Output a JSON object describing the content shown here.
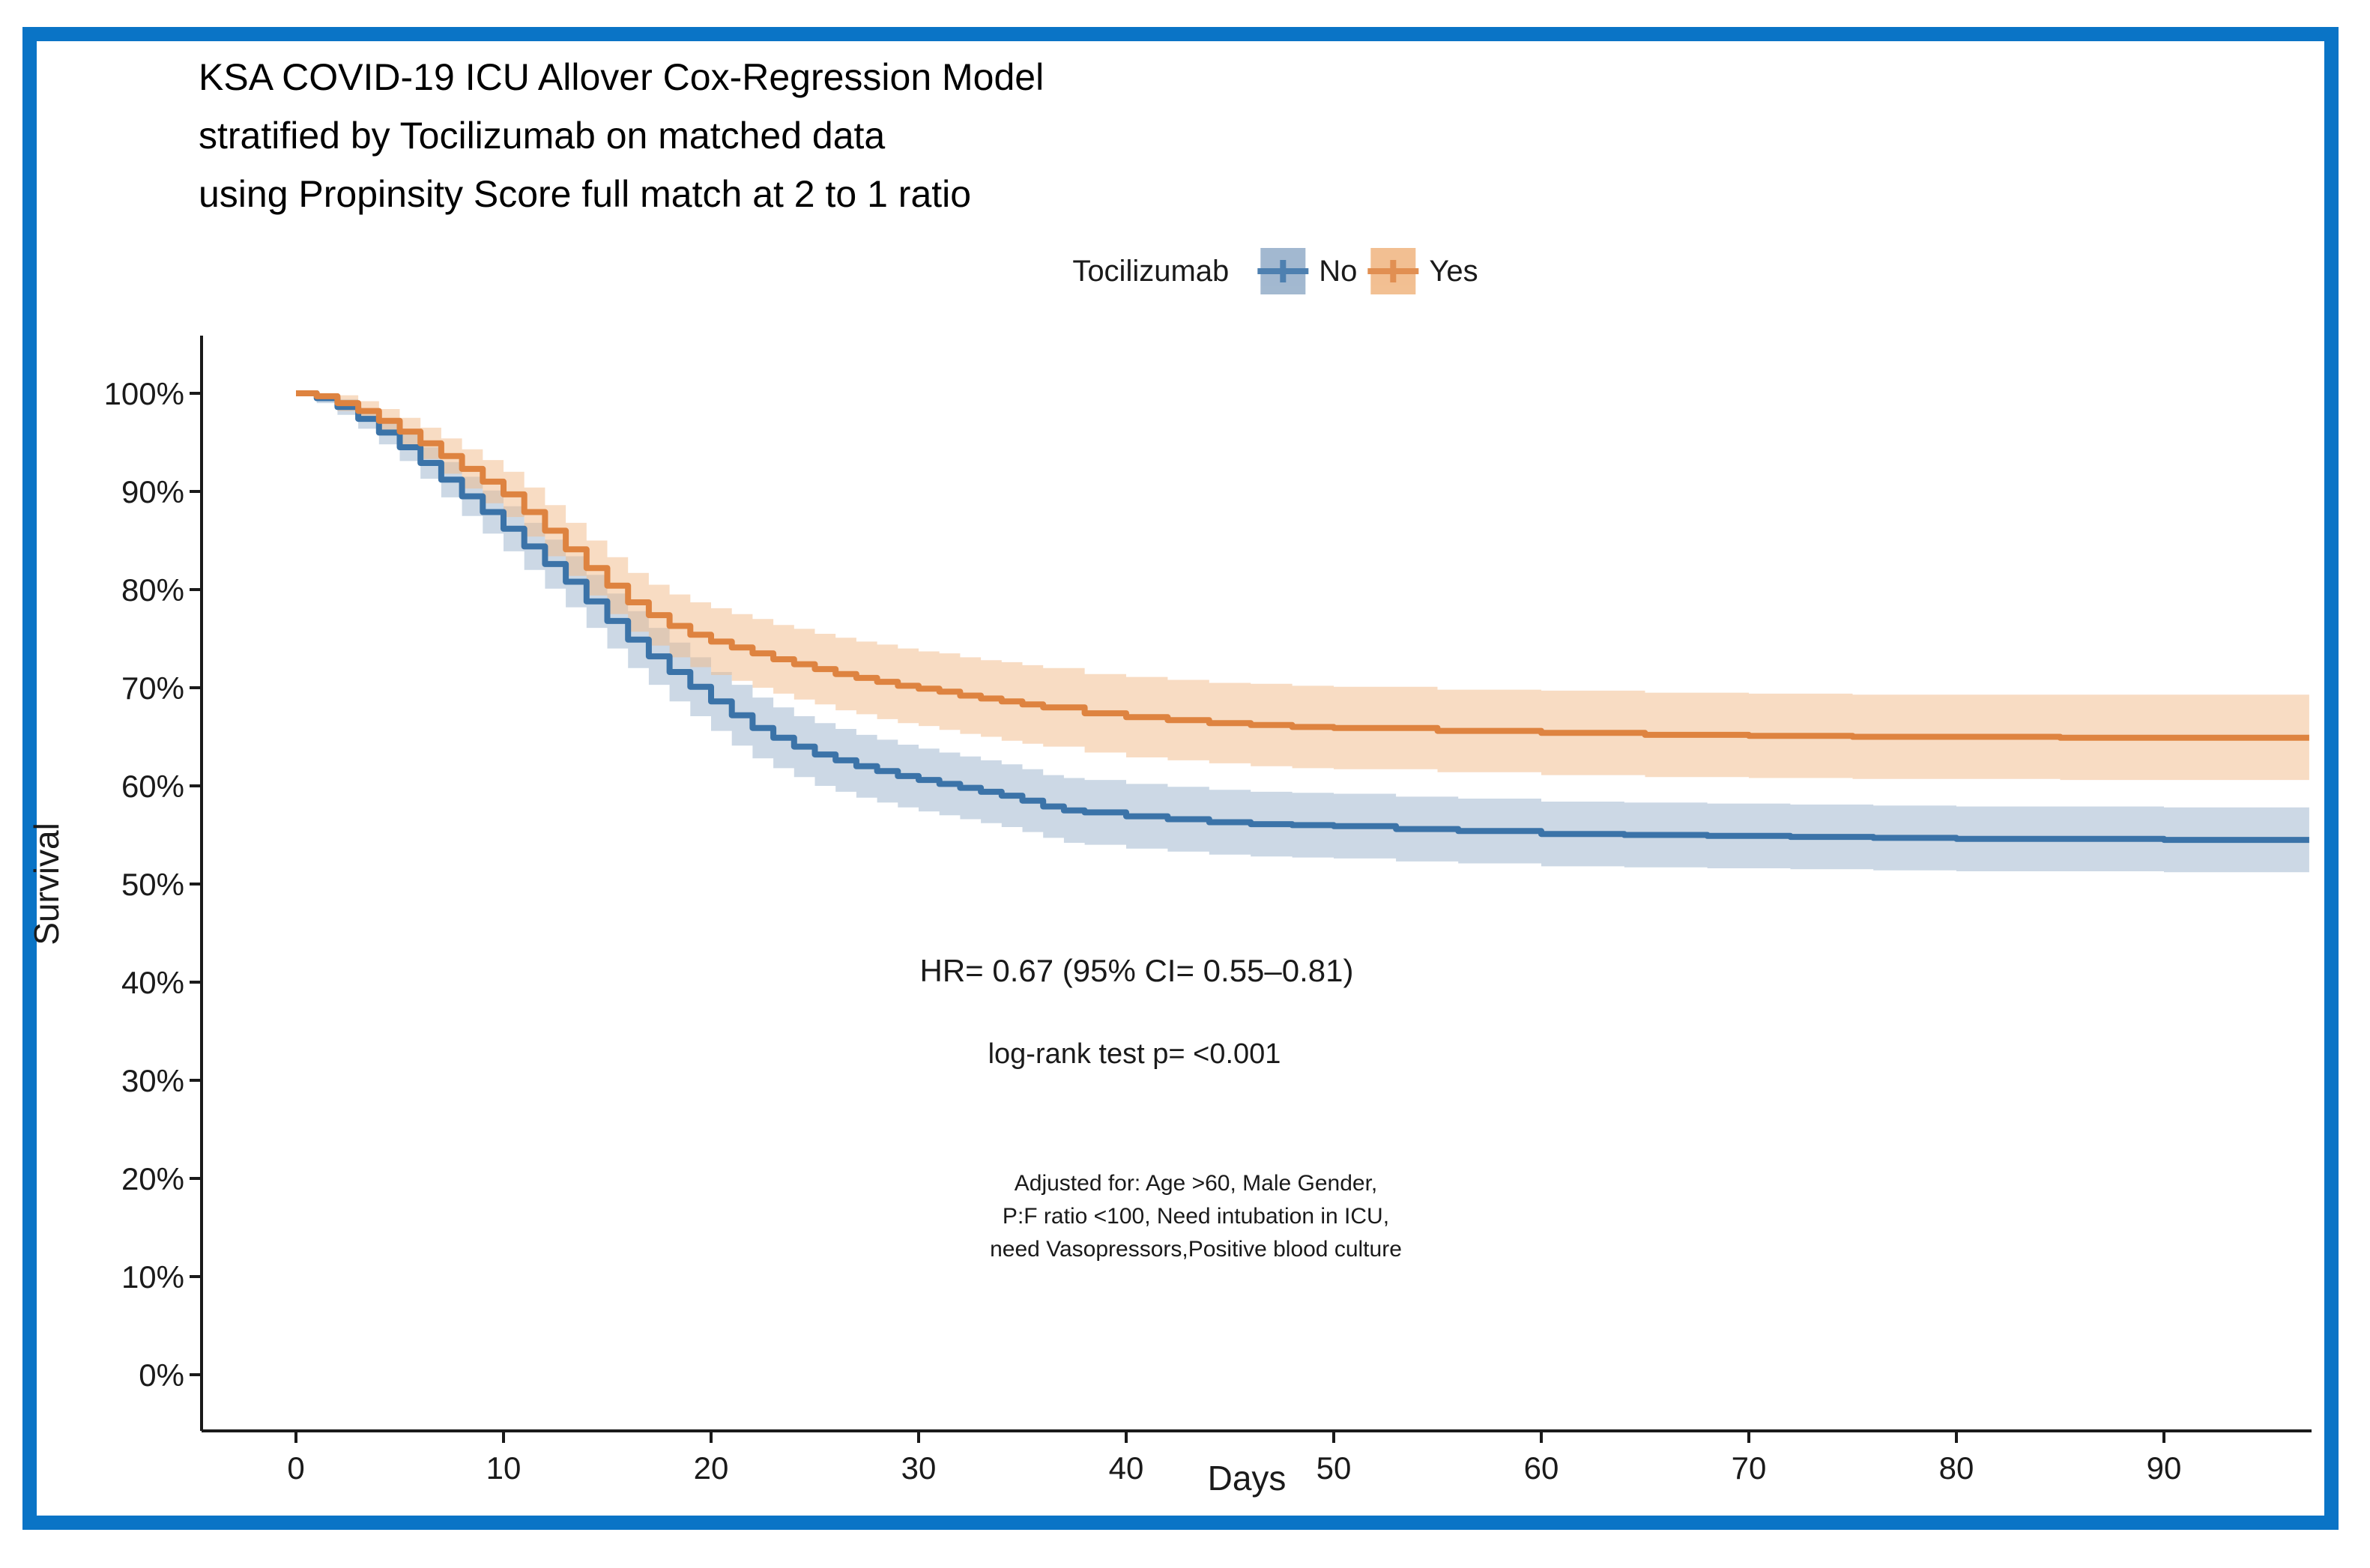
{
  "colors": {
    "frame": "#0a74c6",
    "axis": "#1a1a1a",
    "text": "#1a1a1a"
  },
  "chart_data": {
    "type": "line",
    "subtype": "kaplan-meier-step",
    "title_lines": [
      "KSA COVID-19 ICU Allover Cox-Regression Model",
      "stratified by Tocilizumab on matched data",
      "using Propinsity Score full match at 2 to 1 ratio"
    ],
    "xlabel": "Days",
    "ylabel": "Survival",
    "x_range_days": [
      0,
      97
    ],
    "y_range_pct": [
      0,
      100
    ],
    "grid": false,
    "legend": {
      "title": "Tocilizumab",
      "position": "top-center",
      "items": [
        {
          "label": "No",
          "line_color": "#3b73a8",
          "band_color": "#99b1cb"
        },
        {
          "label": "Yes",
          "line_color": "#de8340",
          "band_color": "#f1b987"
        }
      ]
    },
    "x_ticks": [
      {
        "v": 0,
        "label": "0"
      },
      {
        "v": 10,
        "label": "10"
      },
      {
        "v": 20,
        "label": "20"
      },
      {
        "v": 30,
        "label": "30"
      },
      {
        "v": 40,
        "label": "40"
      },
      {
        "v": 50,
        "label": "50"
      },
      {
        "v": 60,
        "label": "60"
      },
      {
        "v": 70,
        "label": "70"
      },
      {
        "v": 80,
        "label": "80"
      },
      {
        "v": 90,
        "label": "90"
      }
    ],
    "y_ticks": [
      {
        "v": 0,
        "label": "0%"
      },
      {
        "v": 10,
        "label": "10%"
      },
      {
        "v": 20,
        "label": "20%"
      },
      {
        "v": 30,
        "label": "30%"
      },
      {
        "v": 40,
        "label": "40%"
      },
      {
        "v": 50,
        "label": "50%"
      },
      {
        "v": 60,
        "label": "60%"
      },
      {
        "v": 70,
        "label": "70%"
      },
      {
        "v": 80,
        "label": "80%"
      },
      {
        "v": 90,
        "label": "90%"
      },
      {
        "v": 100,
        "label": "100%"
      }
    ],
    "annotations": {
      "hr": "HR= 0.67 (95% CI= 0.55–0.81)",
      "logrank": "log-rank test p= <0.001",
      "adjusted_lines": [
        "Adjusted for: Age >60, Male Gender,",
        "P:F ratio <100, Need intubation in ICU,",
        "need Vasopressors,Positive blood culture"
      ]
    },
    "series": [
      {
        "name": "No",
        "color": "#3b73a8",
        "band_color": "#99b1cb",
        "band_opacity": 0.5,
        "points": [
          [
            0,
            100,
            99.7,
            100
          ],
          [
            1,
            99.5,
            99.0,
            100
          ],
          [
            2,
            98.6,
            97.8,
            99.4
          ],
          [
            3,
            97.4,
            96.4,
            98.4
          ],
          [
            4,
            96.0,
            94.8,
            97.2
          ],
          [
            5,
            94.5,
            93.1,
            95.9
          ],
          [
            6,
            92.9,
            91.3,
            94.5
          ],
          [
            7,
            91.2,
            89.4,
            93.0
          ],
          [
            8,
            89.5,
            87.5,
            91.5
          ],
          [
            9,
            87.9,
            85.7,
            90.1
          ],
          [
            10,
            86.2,
            83.9,
            88.5
          ],
          [
            11,
            84.4,
            82.0,
            86.8
          ],
          [
            12,
            82.6,
            80.1,
            85.1
          ],
          [
            13,
            80.8,
            78.2,
            83.4
          ],
          [
            14,
            78.8,
            76.1,
            81.5
          ],
          [
            15,
            76.8,
            74.0,
            79.6
          ],
          [
            16,
            74.9,
            72.0,
            77.8
          ],
          [
            17,
            73.2,
            70.3,
            76.1
          ],
          [
            18,
            71.6,
            68.6,
            74.6
          ],
          [
            19,
            70.1,
            67.1,
            73.1
          ],
          [
            20,
            68.6,
            65.6,
            71.6
          ],
          [
            21,
            67.2,
            64.1,
            70.3
          ],
          [
            22,
            65.9,
            62.8,
            69.0
          ],
          [
            23,
            64.9,
            61.8,
            68.0
          ],
          [
            24,
            64.0,
            60.9,
            67.1
          ],
          [
            25,
            63.2,
            60.0,
            66.4
          ],
          [
            26,
            62.6,
            59.4,
            65.8
          ],
          [
            27,
            62.0,
            58.8,
            65.2
          ],
          [
            28,
            61.5,
            58.3,
            64.7
          ],
          [
            29,
            61.0,
            57.8,
            64.2
          ],
          [
            30,
            60.6,
            57.4,
            63.8
          ],
          [
            31,
            60.2,
            57.0,
            63.4
          ],
          [
            32,
            59.8,
            56.6,
            63.0
          ],
          [
            33,
            59.4,
            56.2,
            62.6
          ],
          [
            34,
            59.0,
            55.8,
            62.2
          ],
          [
            35,
            58.5,
            55.3,
            61.7
          ],
          [
            36,
            57.9,
            54.7,
            61.1
          ],
          [
            37,
            57.5,
            54.2,
            60.8
          ],
          [
            38,
            57.3,
            54.0,
            60.6
          ],
          [
            40,
            56.9,
            53.6,
            60.2
          ],
          [
            42,
            56.6,
            53.3,
            59.9
          ],
          [
            44,
            56.3,
            53.0,
            59.6
          ],
          [
            46,
            56.1,
            52.8,
            59.4
          ],
          [
            48,
            56.0,
            52.7,
            59.3
          ],
          [
            50,
            55.9,
            52.6,
            59.2
          ],
          [
            53,
            55.6,
            52.3,
            58.9
          ],
          [
            56,
            55.4,
            52.1,
            58.7
          ],
          [
            60,
            55.1,
            51.8,
            58.4
          ],
          [
            64,
            55.0,
            51.7,
            58.3
          ],
          [
            68,
            54.9,
            51.6,
            58.2
          ],
          [
            72,
            54.8,
            51.5,
            58.1
          ],
          [
            76,
            54.7,
            51.4,
            58.0
          ],
          [
            80,
            54.6,
            51.3,
            57.9
          ],
          [
            85,
            54.6,
            51.3,
            57.9
          ],
          [
            90,
            54.5,
            51.2,
            57.8
          ],
          [
            97,
            54.5,
            51.2,
            57.8
          ]
        ]
      },
      {
        "name": "Yes",
        "color": "#de8340",
        "band_color": "#f1b987",
        "band_opacity": 0.5,
        "points": [
          [
            0,
            100,
            99.7,
            100
          ],
          [
            1,
            99.7,
            99.2,
            100
          ],
          [
            2,
            99.0,
            98.2,
            99.8
          ],
          [
            3,
            98.2,
            97.2,
            99.2
          ],
          [
            4,
            97.2,
            96.0,
            98.4
          ],
          [
            5,
            96.1,
            94.7,
            97.5
          ],
          [
            6,
            94.9,
            93.3,
            96.5
          ],
          [
            7,
            93.6,
            91.8,
            95.4
          ],
          [
            8,
            92.3,
            90.3,
            94.3
          ],
          [
            9,
            91.0,
            88.8,
            93.2
          ],
          [
            10,
            89.7,
            87.4,
            92.0
          ],
          [
            11,
            87.9,
            85.4,
            90.4
          ],
          [
            12,
            86.0,
            83.4,
            88.6
          ],
          [
            13,
            84.1,
            81.4,
            86.8
          ],
          [
            14,
            82.2,
            79.4,
            85.0
          ],
          [
            15,
            80.4,
            77.5,
            83.3
          ],
          [
            16,
            78.7,
            75.7,
            81.7
          ],
          [
            17,
            77.4,
            74.3,
            80.5
          ],
          [
            18,
            76.3,
            73.1,
            79.5
          ],
          [
            19,
            75.4,
            72.1,
            78.7
          ],
          [
            20,
            74.7,
            71.3,
            78.1
          ],
          [
            21,
            74.1,
            70.7,
            77.5
          ],
          [
            22,
            73.5,
            70.0,
            77.0
          ],
          [
            23,
            72.9,
            69.4,
            76.4
          ],
          [
            24,
            72.4,
            68.8,
            76.0
          ],
          [
            25,
            71.9,
            68.3,
            75.5
          ],
          [
            26,
            71.4,
            67.7,
            75.1
          ],
          [
            27,
            71.0,
            67.3,
            74.7
          ],
          [
            28,
            70.6,
            66.8,
            74.4
          ],
          [
            29,
            70.2,
            66.4,
            74.0
          ],
          [
            30,
            69.9,
            66.1,
            73.7
          ],
          [
            31,
            69.6,
            65.7,
            73.5
          ],
          [
            32,
            69.2,
            65.3,
            73.1
          ],
          [
            33,
            68.9,
            65.0,
            72.8
          ],
          [
            34,
            68.6,
            64.6,
            72.6
          ],
          [
            35,
            68.3,
            64.3,
            72.3
          ],
          [
            36,
            68.0,
            64.0,
            72.0
          ],
          [
            38,
            67.4,
            63.4,
            71.4
          ],
          [
            40,
            67.0,
            62.9,
            71.1
          ],
          [
            42,
            66.7,
            62.6,
            70.8
          ],
          [
            44,
            66.4,
            62.3,
            70.5
          ],
          [
            46,
            66.2,
            62.0,
            70.4
          ],
          [
            48,
            66.0,
            61.8,
            70.2
          ],
          [
            50,
            65.9,
            61.7,
            70.1
          ],
          [
            55,
            65.6,
            61.4,
            69.8
          ],
          [
            60,
            65.4,
            61.1,
            69.7
          ],
          [
            65,
            65.2,
            60.9,
            69.5
          ],
          [
            70,
            65.1,
            60.8,
            69.4
          ],
          [
            75,
            65.0,
            60.7,
            69.3
          ],
          [
            80,
            65.0,
            60.7,
            69.3
          ],
          [
            85,
            64.9,
            60.6,
            69.3
          ],
          [
            90,
            64.9,
            60.6,
            69.3
          ],
          [
            97,
            64.9,
            60.6,
            69.3
          ]
        ]
      }
    ]
  }
}
